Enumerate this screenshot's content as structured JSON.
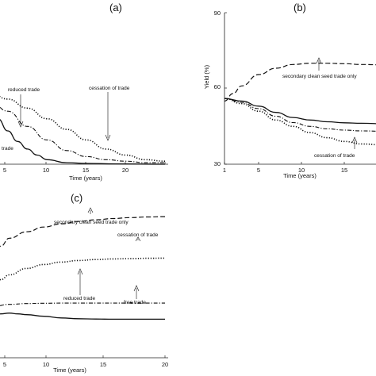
{
  "panels": {
    "a": {
      "letter": "(a)",
      "xlabel": "Time (years)",
      "xticks": [
        "5",
        "10",
        "15",
        "20"
      ],
      "annotations": {
        "reduced": "reduced trade",
        "cessation": "cessation of trade",
        "free": "trade"
      }
    },
    "b": {
      "letter": "(b)",
      "xlabel": "Time (years)",
      "ylabel": "Yield (%)",
      "xticks": [
        "1",
        "5",
        "10",
        "15"
      ],
      "yticks": [
        "90",
        "60",
        "30"
      ],
      "annotations": {
        "secondary": "secondary clean seed trade only",
        "cessation": "cessation of trade"
      }
    },
    "c": {
      "letter": "(c)",
      "xlabel": "Time (years)",
      "xticks": [
        "5",
        "10",
        "15",
        "20"
      ],
      "annotations": {
        "secondary": "secondary clean seed trade only",
        "cessation": "cessation of trade",
        "reduced": "reduced trade",
        "free": "free trade"
      }
    }
  },
  "chart_data": [
    {
      "type": "line",
      "panel": "a",
      "xlim": [
        2,
        20
      ],
      "ylim": [
        0,
        100
      ],
      "series": [
        {
          "style": "dotted",
          "x": [
            2,
            4,
            6,
            8,
            10,
            12,
            14,
            16,
            18,
            20
          ],
          "y": [
            48,
            43,
            37,
            30,
            23,
            16,
            10,
            6,
            3,
            2
          ]
        },
        {
          "style": "dashdot",
          "x": [
            2,
            4,
            6,
            8,
            10,
            12,
            14,
            16,
            18,
            20
          ],
          "y": [
            44,
            35,
            25,
            16,
            9,
            5,
            3,
            2,
            1,
            1
          ]
        },
        {
          "style": "solid",
          "x": [
            2,
            3,
            4,
            5,
            6,
            7,
            8,
            10,
            12,
            15,
            20
          ],
          "y": [
            37,
            30,
            22,
            15,
            10,
            6,
            3,
            1,
            0.5,
            0.2,
            0
          ]
        }
      ]
    },
    {
      "type": "line",
      "panel": "b",
      "xlim": [
        1,
        20
      ],
      "ylim": [
        30,
        90
      ],
      "series": [
        {
          "style": "dashed",
          "x": [
            1,
            2,
            3,
            5,
            7,
            9,
            11,
            13,
            15,
            17,
            20
          ],
          "y": [
            55,
            58,
            61,
            65.5,
            68,
            69.5,
            70,
            70,
            69.8,
            69.5,
            69.3
          ]
        },
        {
          "style": "solid",
          "x": [
            1,
            3,
            5,
            7,
            9,
            11,
            13,
            15,
            17,
            20
          ],
          "y": [
            56,
            55,
            53,
            50.5,
            48.5,
            47.5,
            46.8,
            46.4,
            46.2,
            46
          ]
        },
        {
          "style": "dashdot",
          "x": [
            1,
            3,
            5,
            7,
            9,
            11,
            13,
            15,
            17,
            20
          ],
          "y": [
            56,
            54.5,
            52,
            49,
            46.5,
            45,
            44,
            43.5,
            43.2,
            43
          ]
        },
        {
          "style": "dotted",
          "x": [
            1,
            3,
            5,
            7,
            9,
            11,
            13,
            15,
            17,
            20
          ],
          "y": [
            56,
            54,
            51,
            47.5,
            45,
            42.5,
            40.5,
            39,
            38,
            37.5
          ]
        }
      ]
    },
    {
      "type": "line",
      "panel": "c",
      "xlim": [
        0,
        20
      ],
      "ylim": [
        0,
        100
      ],
      "series": [
        {
          "style": "dashed",
          "x": [
            0,
            1,
            2,
            4,
            6,
            8,
            10,
            12,
            14,
            16,
            18,
            20
          ],
          "y": [
            60,
            70,
            75,
            79,
            82,
            84,
            85.5,
            86.5,
            87.3,
            87.9,
            88.3,
            88.5
          ]
        },
        {
          "style": "dotted",
          "x": [
            0,
            1,
            2,
            4,
            6,
            8,
            10,
            12,
            14,
            16,
            18,
            20
          ],
          "y": [
            43,
            49,
            52,
            56,
            58.5,
            60,
            61,
            61.6,
            62,
            62.2,
            62.4,
            62.5
          ]
        },
        {
          "style": "dashdot",
          "x": [
            0,
            2,
            4,
            6,
            8,
            10,
            12,
            14,
            16,
            18,
            20
          ],
          "y": [
            32,
            33.5,
            34,
            34.2,
            34.3,
            34.3,
            34.3,
            34.3,
            34.3,
            34.3,
            34.3
          ]
        },
        {
          "style": "solid",
          "x": [
            0,
            1,
            2,
            3,
            4,
            6,
            8,
            10,
            12,
            14,
            16,
            18,
            20
          ],
          "y": [
            26,
            27.5,
            28,
            27.5,
            27,
            26,
            25,
            24.5,
            24.3,
            24.2,
            24.2,
            24.2,
            24.2
          ]
        }
      ]
    }
  ]
}
